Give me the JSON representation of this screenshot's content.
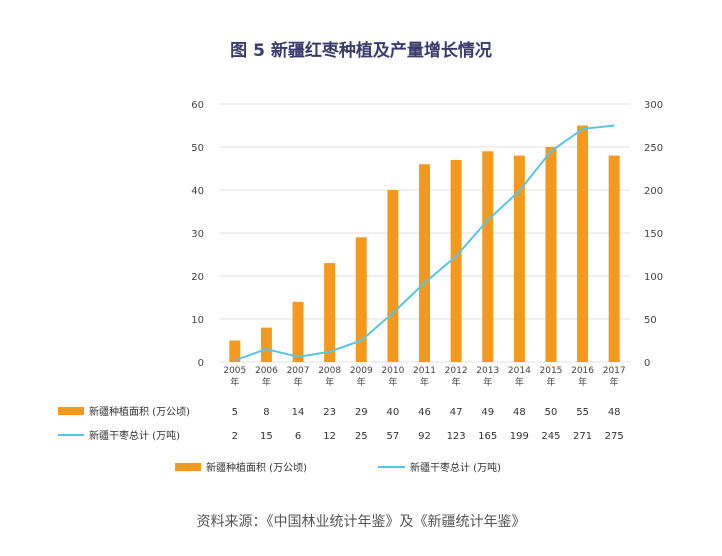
{
  "chart_data": {
    "type": "bar",
    "title": "图 5   新疆红枣种植及产量增长情况",
    "categories": [
      "2005\n年",
      "2006\n年",
      "2007\n年",
      "2008\n年",
      "2009\n年",
      "2010\n年",
      "2011\n年",
      "2012\n年",
      "2013\n年",
      "2014\n年",
      "2015\n年",
      "2016\n年",
      "2017\n年"
    ],
    "series": [
      {
        "name": "新疆种植面积（万公顷）",
        "type": "bar",
        "axis": "left",
        "color": "#f39a1e",
        "values": [
          5,
          8,
          14,
          23,
          29,
          40,
          46,
          47,
          49,
          48,
          50,
          55,
          48
        ]
      },
      {
        "name": "新疆干枣总计（万吨）",
        "type": "line",
        "axis": "right",
        "color": "#5bc3e4",
        "values": [
          2,
          15,
          6,
          12,
          25,
          57,
          92,
          123,
          165,
          199,
          245,
          271,
          275
        ]
      }
    ],
    "ylim_left": [
      0,
      60
    ],
    "yticks_left": [
      "0",
      "10",
      "20",
      "30",
      "40",
      "50",
      "60"
    ],
    "ylim_right": [
      0,
      300
    ],
    "yticks_right": [
      "0",
      "50",
      "100",
      "150",
      "200",
      "250",
      "300"
    ],
    "table": {
      "rows": [
        {
          "label": "新疆种植面积  (万公顷)",
          "values": [
            "5",
            "8",
            "14",
            "23",
            "29",
            "40",
            "46",
            "47",
            "49",
            "48",
            "50",
            "55",
            "48"
          ]
        },
        {
          "label": "新疆干枣总计  (万吨)",
          "values": [
            "2",
            "15",
            "6",
            "12",
            "25",
            "57",
            "92",
            "123",
            "165",
            "199",
            "245",
            "271",
            "275"
          ]
        }
      ]
    },
    "legend": [
      {
        "label": "新疆种植面积  (万公顷)"
      },
      {
        "label": "新疆干枣总计  (万吨)"
      }
    ],
    "source": "资料来源：《中国林业统计年鉴》及《新疆统计年鉴》"
  }
}
